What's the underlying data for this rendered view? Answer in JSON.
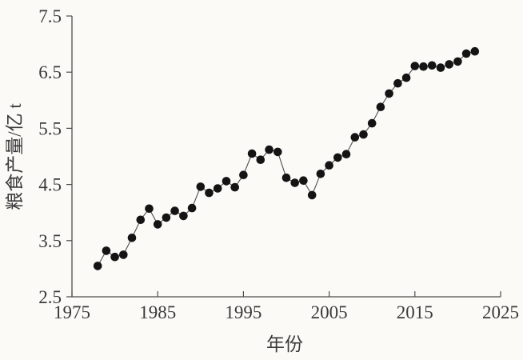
{
  "figure": {
    "background_color": "#fbfaf7",
    "axis_color": "#4d4d4d",
    "text_color": "#3a3a3a",
    "line_color": "#4f4f4f",
    "marker_color": "#141414"
  },
  "chart_data": {
    "type": "line",
    "title": "",
    "xlabel": "年份",
    "ylabel": "粮食产量/亿 t",
    "xlim": [
      1975,
      2025
    ],
    "ylim": [
      2.5,
      7.5
    ],
    "xticks": [
      1975,
      1985,
      1995,
      2005,
      2015,
      2025
    ],
    "yticks": [
      2.5,
      3.5,
      4.5,
      5.5,
      6.5,
      7.5
    ],
    "grid": false,
    "legend_position": "none",
    "marker": "filled-circle",
    "series": [
      {
        "name": "粮食产量",
        "x": [
          1978,
          1979,
          1980,
          1981,
          1982,
          1983,
          1984,
          1985,
          1986,
          1987,
          1988,
          1989,
          1990,
          1991,
          1992,
          1993,
          1994,
          1995,
          1996,
          1997,
          1998,
          1999,
          2000,
          2001,
          2002,
          2003,
          2004,
          2005,
          2006,
          2007,
          2008,
          2009,
          2010,
          2011,
          2012,
          2013,
          2014,
          2015,
          2016,
          2017,
          2018,
          2019,
          2020,
          2021,
          2022
        ],
        "y": [
          3.05,
          3.32,
          3.21,
          3.25,
          3.55,
          3.87,
          4.07,
          3.79,
          3.91,
          4.03,
          3.94,
          4.08,
          4.46,
          4.35,
          4.43,
          4.56,
          4.45,
          4.67,
          5.05,
          4.94,
          5.12,
          5.08,
          4.62,
          4.53,
          4.57,
          4.31,
          4.69,
          4.84,
          4.98,
          5.04,
          5.34,
          5.39,
          5.59,
          5.88,
          6.12,
          6.3,
          6.4,
          6.61,
          6.6,
          6.62,
          6.58,
          6.64,
          6.69,
          6.83,
          6.87
        ]
      }
    ]
  }
}
